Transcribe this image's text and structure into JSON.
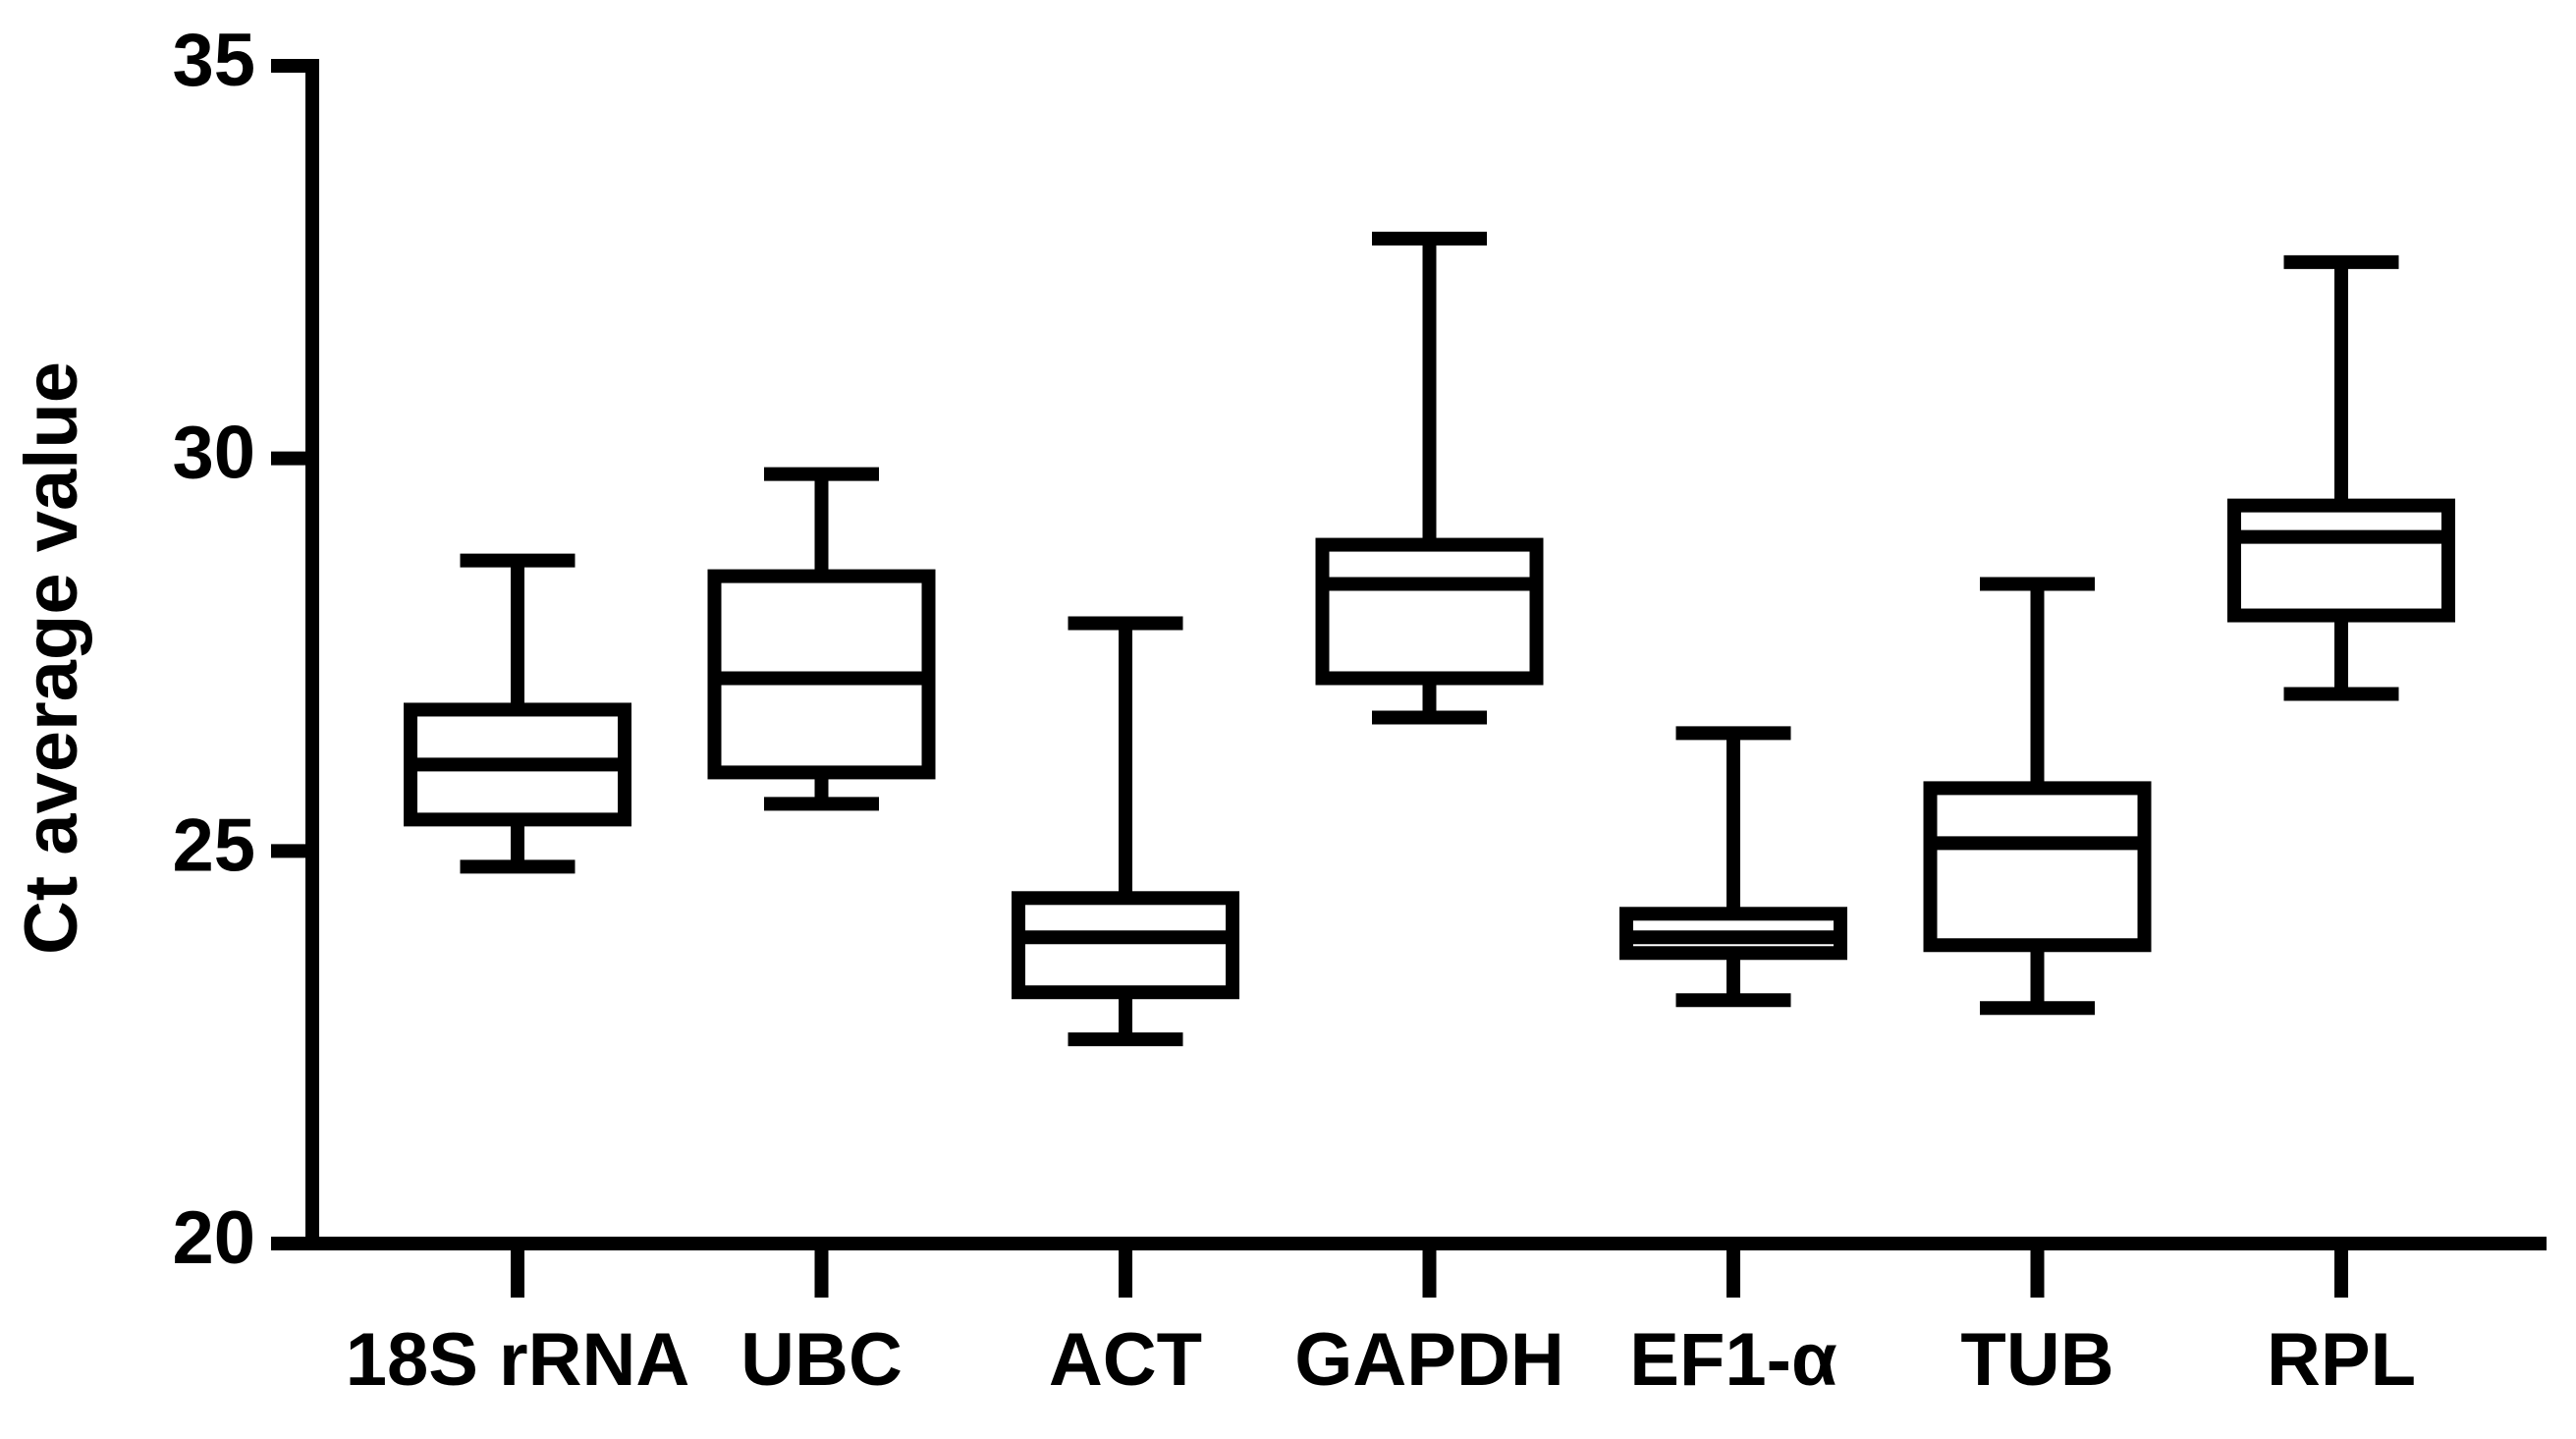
{
  "chart_data": {
    "type": "box",
    "y_label": "Ct average value",
    "categories": [
      "18S rRNA",
      "UBC",
      "ACT",
      "GAPDH",
      "EF1-α",
      "TUB",
      "RPL"
    ],
    "min": [
      24.8,
      25.6,
      22.6,
      26.7,
      23.1,
      23.0,
      27.0
    ],
    "q1": [
      25.4,
      26.0,
      23.2,
      27.2,
      23.7,
      23.8,
      28.0
    ],
    "median": [
      26.1,
      27.2,
      23.9,
      28.4,
      23.9,
      25.1,
      29.0
    ],
    "q3": [
      26.8,
      28.5,
      24.4,
      28.9,
      24.2,
      25.8,
      29.4
    ],
    "max": [
      28.7,
      29.8,
      27.9,
      32.8,
      26.5,
      28.4,
      32.5
    ],
    "color": "#000000",
    "ylim": [
      20,
      35
    ],
    "yticks": [
      20,
      25,
      30,
      35
    ]
  }
}
